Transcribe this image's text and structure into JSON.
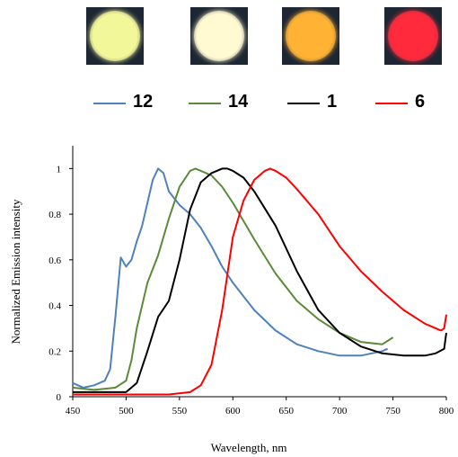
{
  "chart_data": {
    "type": "line",
    "xlabel": "Wavelength,  nm",
    "ylabel": "Normalized  Emission  intensity",
    "xlim": [
      450,
      800
    ],
    "ylim": [
      0,
      1.1
    ],
    "x_ticks": [
      450,
      500,
      550,
      600,
      650,
      700,
      750,
      800
    ],
    "y_ticks": [
      0,
      0.2,
      0.4,
      0.6,
      0.8,
      1
    ],
    "x_tick_labels": [
      "450",
      "500",
      "550",
      "600",
      "650",
      "700",
      "750",
      "800"
    ],
    "y_tick_labels": [
      "0",
      "0.2",
      "0.4",
      "0.6",
      "0.8",
      "1"
    ],
    "grid": false,
    "legend_position": "top",
    "series": [
      {
        "name": "12",
        "color": "#4f81bd",
        "x": [
          450,
          460,
          470,
          480,
          485,
          490,
          495,
          500,
          505,
          510,
          515,
          520,
          525,
          530,
          535,
          540,
          550,
          560,
          570,
          580,
          590,
          600,
          620,
          640,
          660,
          680,
          700,
          720,
          740,
          745
        ],
        "y": [
          0.06,
          0.04,
          0.05,
          0.07,
          0.12,
          0.35,
          0.61,
          0.57,
          0.6,
          0.68,
          0.75,
          0.85,
          0.95,
          1.0,
          0.98,
          0.9,
          0.84,
          0.8,
          0.74,
          0.66,
          0.57,
          0.5,
          0.38,
          0.29,
          0.23,
          0.2,
          0.18,
          0.18,
          0.2,
          0.21
        ]
      },
      {
        "name": "14",
        "color": "#5a8a3a",
        "x": [
          450,
          470,
          490,
          500,
          505,
          510,
          520,
          530,
          540,
          550,
          560,
          565,
          570,
          580,
          590,
          600,
          620,
          640,
          660,
          680,
          700,
          720,
          740,
          750
        ],
        "y": [
          0.04,
          0.03,
          0.04,
          0.07,
          0.16,
          0.3,
          0.5,
          0.62,
          0.78,
          0.92,
          0.99,
          1.0,
          0.99,
          0.97,
          0.92,
          0.85,
          0.69,
          0.54,
          0.42,
          0.34,
          0.28,
          0.24,
          0.23,
          0.26
        ]
      },
      {
        "name": "1",
        "color": "#000000",
        "x": [
          450,
          480,
          500,
          510,
          520,
          530,
          540,
          550,
          560,
          570,
          580,
          590,
          595,
          600,
          610,
          620,
          640,
          660,
          680,
          700,
          720,
          740,
          760,
          780,
          790,
          798,
          800
        ],
        "y": [
          0.02,
          0.02,
          0.02,
          0.06,
          0.2,
          0.35,
          0.42,
          0.6,
          0.82,
          0.94,
          0.98,
          1.0,
          1.0,
          0.99,
          0.96,
          0.9,
          0.75,
          0.55,
          0.38,
          0.28,
          0.22,
          0.19,
          0.18,
          0.18,
          0.19,
          0.21,
          0.28
        ]
      },
      {
        "name": "6",
        "color": "#ff0000",
        "x": [
          450,
          500,
          540,
          560,
          570,
          580,
          590,
          600,
          610,
          620,
          630,
          635,
          640,
          650,
          660,
          680,
          700,
          720,
          740,
          760,
          780,
          790,
          795,
          798,
          800
        ],
        "y": [
          0.01,
          0.01,
          0.01,
          0.02,
          0.05,
          0.14,
          0.38,
          0.7,
          0.86,
          0.95,
          0.99,
          1.0,
          0.99,
          0.96,
          0.91,
          0.8,
          0.66,
          0.55,
          0.46,
          0.38,
          0.32,
          0.3,
          0.29,
          0.3,
          0.36
        ]
      }
    ]
  },
  "photos": [
    {
      "color": "#f2f79a"
    },
    {
      "color": "#fffad2"
    },
    {
      "color": "#ffb234"
    },
    {
      "color": "#ff2a3c"
    }
  ]
}
